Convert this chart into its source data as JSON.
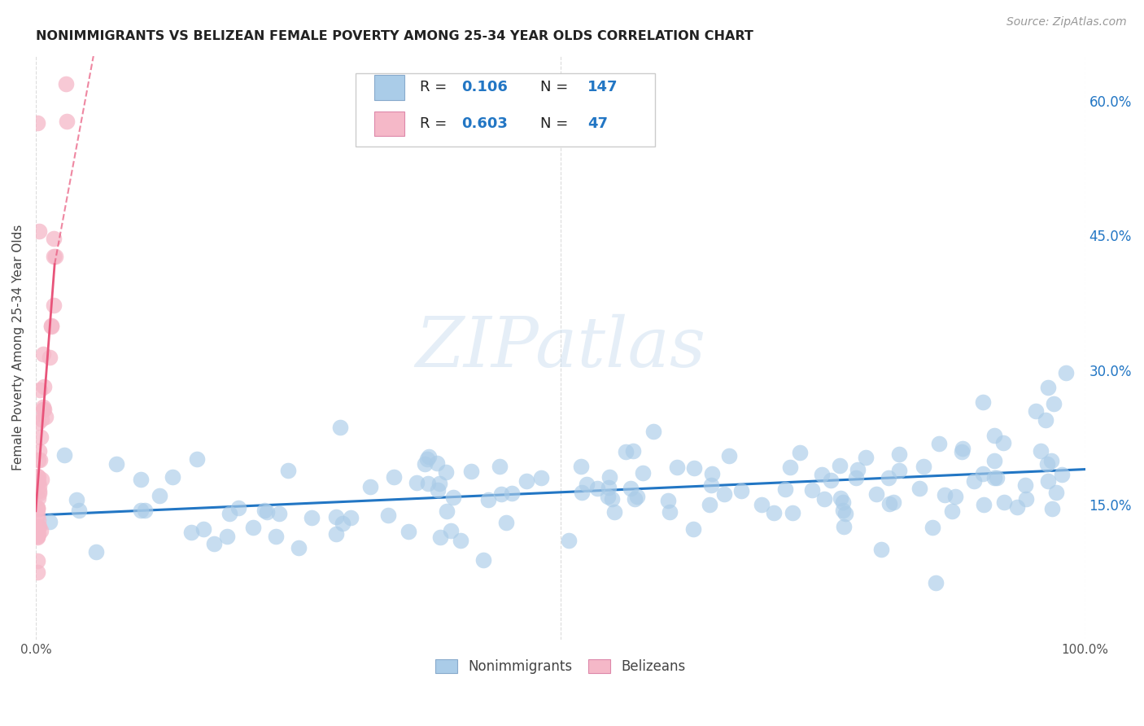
{
  "title": "NONIMMIGRANTS VS BELIZEAN FEMALE POVERTY AMONG 25-34 YEAR OLDS CORRELATION CHART",
  "source": "Source: ZipAtlas.com",
  "ylabel": "Female Poverty Among 25-34 Year Olds",
  "legend_blue_R": "0.106",
  "legend_blue_N": "147",
  "legend_pink_R": "0.603",
  "legend_pink_N": "47",
  "legend_label_blue": "Nonimmigrants",
  "legend_label_pink": "Belizeans",
  "blue_color": "#aacce8",
  "blue_edge": "#aacce8",
  "pink_color": "#f5b8c8",
  "pink_edge": "#f5b8c8",
  "trend_blue_color": "#2276c4",
  "trend_pink_color": "#e8547a",
  "watermark": "ZIPatlas",
  "xlim": [
    0.0,
    1.0
  ],
  "ylim": [
    0.0,
    0.65
  ],
  "ytick_right": [
    0.15,
    0.3,
    0.45,
    0.6
  ],
  "ytick_right_labels": [
    "15.0%",
    "30.0%",
    "45.0%",
    "60.0%"
  ],
  "background_color": "#ffffff",
  "grid_color": "#cccccc",
  "title_color": "#222222",
  "source_color": "#999999",
  "tick_label_color": "#555555",
  "right_tick_color": "#2276c4"
}
